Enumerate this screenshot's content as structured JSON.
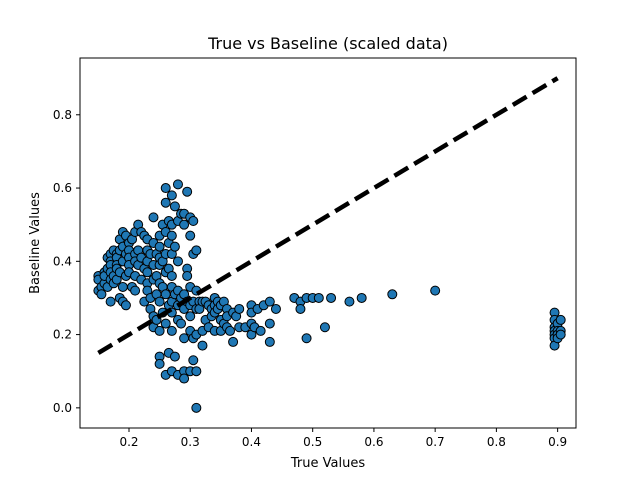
{
  "chart_data": {
    "type": "scatter",
    "title": "True vs Baseline (scaled data)",
    "xlabel": "True Values",
    "ylabel": "Baseline Values",
    "xlim": [
      0.12,
      0.93
    ],
    "ylim": [
      -0.055,
      0.955
    ],
    "xticks": [
      {
        "value": 0.2,
        "label": "0.2"
      },
      {
        "value": 0.3,
        "label": "0.3"
      },
      {
        "value": 0.4,
        "label": "0.4"
      },
      {
        "value": 0.5,
        "label": "0.5"
      },
      {
        "value": 0.6,
        "label": "0.6"
      },
      {
        "value": 0.7,
        "label": "0.7"
      },
      {
        "value": 0.8,
        "label": "0.8"
      },
      {
        "value": 0.9,
        "label": "0.9"
      }
    ],
    "yticks": [
      {
        "value": 0.0,
        "label": "0.0"
      },
      {
        "value": 0.2,
        "label": "0.2"
      },
      {
        "value": 0.4,
        "label": "0.4"
      },
      {
        "value": 0.6,
        "label": "0.6"
      },
      {
        "value": 0.8,
        "label": "0.8"
      }
    ],
    "grid": false,
    "legend": false,
    "colors": {
      "marker_fill": "#1f77b4",
      "marker_edge": "#000000",
      "reference_line": "#000000"
    },
    "reference_line": {
      "style": "dashed",
      "points": [
        [
          0.15,
          0.15
        ],
        [
          0.9,
          0.9
        ]
      ]
    },
    "series": [
      {
        "points": [
          [
            0.15,
            0.36
          ],
          [
            0.15,
            0.35
          ],
          [
            0.15,
            0.32
          ],
          [
            0.155,
            0.33
          ],
          [
            0.155,
            0.31
          ],
          [
            0.16,
            0.37
          ],
          [
            0.16,
            0.34
          ],
          [
            0.16,
            0.36
          ],
          [
            0.165,
            0.41
          ],
          [
            0.165,
            0.38
          ],
          [
            0.165,
            0.33
          ],
          [
            0.17,
            0.42
          ],
          [
            0.17,
            0.4
          ],
          [
            0.17,
            0.39
          ],
          [
            0.17,
            0.37
          ],
          [
            0.17,
            0.35
          ],
          [
            0.17,
            0.29
          ],
          [
            0.175,
            0.43
          ],
          [
            0.175,
            0.36
          ],
          [
            0.175,
            0.34
          ],
          [
            0.18,
            0.42
          ],
          [
            0.18,
            0.41
          ],
          [
            0.18,
            0.39
          ],
          [
            0.18,
            0.38
          ],
          [
            0.18,
            0.35
          ],
          [
            0.185,
            0.46
          ],
          [
            0.185,
            0.43
          ],
          [
            0.185,
            0.37
          ],
          [
            0.185,
            0.3
          ],
          [
            0.19,
            0.48
          ],
          [
            0.19,
            0.44
          ],
          [
            0.19,
            0.4
          ],
          [
            0.19,
            0.33
          ],
          [
            0.19,
            0.29
          ],
          [
            0.195,
            0.47
          ],
          [
            0.195,
            0.42
          ],
          [
            0.195,
            0.36
          ],
          [
            0.195,
            0.28
          ],
          [
            0.2,
            0.45
          ],
          [
            0.2,
            0.43
          ],
          [
            0.2,
            0.41
          ],
          [
            0.2,
            0.39
          ],
          [
            0.2,
            0.37
          ],
          [
            0.205,
            0.46
          ],
          [
            0.205,
            0.33
          ],
          [
            0.21,
            0.48
          ],
          [
            0.21,
            0.42
          ],
          [
            0.21,
            0.4
          ],
          [
            0.21,
            0.36
          ],
          [
            0.21,
            0.32
          ],
          [
            0.215,
            0.5
          ],
          [
            0.215,
            0.43
          ],
          [
            0.215,
            0.39
          ],
          [
            0.22,
            0.48
          ],
          [
            0.22,
            0.41
          ],
          [
            0.22,
            0.35
          ],
          [
            0.225,
            0.47
          ],
          [
            0.225,
            0.38
          ],
          [
            0.225,
            0.29
          ],
          [
            0.23,
            0.46
          ],
          [
            0.23,
            0.43
          ],
          [
            0.23,
            0.4
          ],
          [
            0.23,
            0.37
          ],
          [
            0.23,
            0.34
          ],
          [
            0.23,
            0.32
          ],
          [
            0.235,
            0.42
          ],
          [
            0.235,
            0.3
          ],
          [
            0.235,
            0.27
          ],
          [
            0.24,
            0.52
          ],
          [
            0.24,
            0.45
          ],
          [
            0.24,
            0.39
          ],
          [
            0.24,
            0.35
          ],
          [
            0.24,
            0.25
          ],
          [
            0.24,
            0.22
          ],
          [
            0.245,
            0.42
          ],
          [
            0.245,
            0.36
          ],
          [
            0.245,
            0.31
          ],
          [
            0.245,
            0.24
          ],
          [
            0.25,
            0.47
          ],
          [
            0.25,
            0.44
          ],
          [
            0.25,
            0.41
          ],
          [
            0.25,
            0.39
          ],
          [
            0.25,
            0.34
          ],
          [
            0.25,
            0.29
          ],
          [
            0.25,
            0.21
          ],
          [
            0.25,
            0.14
          ],
          [
            0.25,
            0.12
          ],
          [
            0.255,
            0.5
          ],
          [
            0.255,
            0.4
          ],
          [
            0.255,
            0.33
          ],
          [
            0.255,
            0.26
          ],
          [
            0.26,
            0.6
          ],
          [
            0.26,
            0.56
          ],
          [
            0.26,
            0.48
          ],
          [
            0.26,
            0.42
          ],
          [
            0.26,
            0.37
          ],
          [
            0.26,
            0.31
          ],
          [
            0.26,
            0.23
          ],
          [
            0.26,
            0.09
          ],
          [
            0.265,
            0.51
          ],
          [
            0.265,
            0.45
          ],
          [
            0.265,
            0.38
          ],
          [
            0.265,
            0.28
          ],
          [
            0.265,
            0.15
          ],
          [
            0.27,
            0.58
          ],
          [
            0.27,
            0.5
          ],
          [
            0.27,
            0.47
          ],
          [
            0.27,
            0.42
          ],
          [
            0.27,
            0.36
          ],
          [
            0.27,
            0.33
          ],
          [
            0.27,
            0.29
          ],
          [
            0.27,
            0.26
          ],
          [
            0.27,
            0.21
          ],
          [
            0.27,
            0.1
          ],
          [
            0.275,
            0.55
          ],
          [
            0.275,
            0.44
          ],
          [
            0.275,
            0.31
          ],
          [
            0.275,
            0.14
          ],
          [
            0.28,
            0.61
          ],
          [
            0.28,
            0.51
          ],
          [
            0.28,
            0.4
          ],
          [
            0.28,
            0.32
          ],
          [
            0.28,
            0.28
          ],
          [
            0.28,
            0.24
          ],
          [
            0.28,
            0.09
          ],
          [
            0.285,
            0.53
          ],
          [
            0.285,
            0.3
          ],
          [
            0.285,
            0.23
          ],
          [
            0.29,
            0.53
          ],
          [
            0.29,
            0.5
          ],
          [
            0.29,
            0.31
          ],
          [
            0.29,
            0.27
          ],
          [
            0.29,
            0.19
          ],
          [
            0.29,
            0.1
          ],
          [
            0.29,
            0.08
          ],
          [
            0.295,
            0.59
          ],
          [
            0.295,
            0.38
          ],
          [
            0.295,
            0.36
          ],
          [
            0.295,
            0.29
          ],
          [
            0.3,
            0.52
          ],
          [
            0.3,
            0.47
          ],
          [
            0.3,
            0.33
          ],
          [
            0.3,
            0.28
          ],
          [
            0.3,
            0.25
          ],
          [
            0.3,
            0.21
          ],
          [
            0.3,
            0.1
          ],
          [
            0.305,
            0.51
          ],
          [
            0.305,
            0.42
          ],
          [
            0.305,
            0.29
          ],
          [
            0.305,
            0.19
          ],
          [
            0.305,
            0.13
          ],
          [
            0.31,
            0.43
          ],
          [
            0.31,
            0.32
          ],
          [
            0.31,
            0.27
          ],
          [
            0.31,
            0.2
          ],
          [
            0.31,
            0.1
          ],
          [
            0.31,
            0.0
          ],
          [
            0.315,
            0.29
          ],
          [
            0.315,
            0.27
          ],
          [
            0.32,
            0.29
          ],
          [
            0.32,
            0.21
          ],
          [
            0.32,
            0.17
          ],
          [
            0.325,
            0.29
          ],
          [
            0.325,
            0.24
          ],
          [
            0.33,
            0.28
          ],
          [
            0.33,
            0.22
          ],
          [
            0.335,
            0.27
          ],
          [
            0.335,
            0.25
          ],
          [
            0.34,
            0.3
          ],
          [
            0.34,
            0.28
          ],
          [
            0.34,
            0.26
          ],
          [
            0.34,
            0.21
          ],
          [
            0.345,
            0.29
          ],
          [
            0.345,
            0.27
          ],
          [
            0.35,
            0.28
          ],
          [
            0.35,
            0.24
          ],
          [
            0.35,
            0.21
          ],
          [
            0.355,
            0.29
          ],
          [
            0.355,
            0.23
          ],
          [
            0.36,
            0.27
          ],
          [
            0.36,
            0.25
          ],
          [
            0.36,
            0.22
          ],
          [
            0.365,
            0.21
          ],
          [
            0.37,
            0.26
          ],
          [
            0.37,
            0.18
          ],
          [
            0.375,
            0.25
          ],
          [
            0.38,
            0.27
          ],
          [
            0.38,
            0.22
          ],
          [
            0.39,
            0.22
          ],
          [
            0.4,
            0.28
          ],
          [
            0.4,
            0.26
          ],
          [
            0.4,
            0.23
          ],
          [
            0.4,
            0.2
          ],
          [
            0.405,
            0.22
          ],
          [
            0.41,
            0.27
          ],
          [
            0.415,
            0.21
          ],
          [
            0.42,
            0.28
          ],
          [
            0.43,
            0.29
          ],
          [
            0.43,
            0.23
          ],
          [
            0.43,
            0.18
          ],
          [
            0.44,
            0.27
          ],
          [
            0.47,
            0.3
          ],
          [
            0.48,
            0.29
          ],
          [
            0.48,
            0.27
          ],
          [
            0.49,
            0.3
          ],
          [
            0.49,
            0.19
          ],
          [
            0.5,
            0.3
          ],
          [
            0.51,
            0.3
          ],
          [
            0.52,
            0.22
          ],
          [
            0.53,
            0.3
          ],
          [
            0.56,
            0.29
          ],
          [
            0.58,
            0.3
          ],
          [
            0.63,
            0.31
          ],
          [
            0.7,
            0.32
          ],
          [
            0.895,
            0.26
          ],
          [
            0.895,
            0.24
          ],
          [
            0.895,
            0.22
          ],
          [
            0.895,
            0.21
          ],
          [
            0.895,
            0.2
          ],
          [
            0.895,
            0.19
          ],
          [
            0.895,
            0.17
          ],
          [
            0.9,
            0.23
          ],
          [
            0.9,
            0.21
          ],
          [
            0.9,
            0.2
          ],
          [
            0.9,
            0.19
          ],
          [
            0.905,
            0.24
          ],
          [
            0.905,
            0.21
          ],
          [
            0.905,
            0.2
          ]
        ]
      }
    ]
  }
}
